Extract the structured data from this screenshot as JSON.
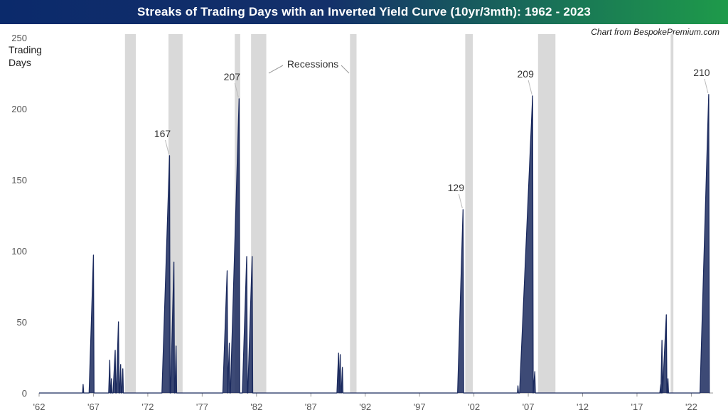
{
  "header": {
    "title": "Streaks of Trading Days with an Inverted Yield Curve (10yr/3mth): 1962 - 2023",
    "credit": "Chart from BespokePremium.com"
  },
  "colors": {
    "series": "#1b2a5e",
    "recession": "#d9d9d9",
    "axis": "#999999"
  },
  "chart_data": {
    "type": "area",
    "title": "Streaks of Trading Days with an Inverted Yield Curve (10yr/3mth): 1962 - 2023",
    "ylabel_lines": [
      "Trading",
      "Days"
    ],
    "ylim": [
      0,
      250
    ],
    "yticks": [
      0,
      50,
      100,
      150,
      200,
      250
    ],
    "xlim": [
      1962,
      2024
    ],
    "xticks": [
      {
        "year": 1962,
        "label": "'62"
      },
      {
        "year": 1967,
        "label": "'67"
      },
      {
        "year": 1972,
        "label": "'72"
      },
      {
        "year": 1977,
        "label": "'77"
      },
      {
        "year": 1982,
        "label": "'82"
      },
      {
        "year": 1987,
        "label": "'87"
      },
      {
        "year": 1992,
        "label": "'92"
      },
      {
        "year": 1997,
        "label": "'97"
      },
      {
        "year": 2002,
        "label": "'02"
      },
      {
        "year": 2007,
        "label": "'07"
      },
      {
        "year": 2012,
        "label": "'12"
      },
      {
        "year": 2017,
        "label": "'17"
      },
      {
        "year": 2022,
        "label": "'22"
      }
    ],
    "recessions_label": "Recessions",
    "recessions": [
      [
        1969.9,
        1970.9
      ],
      [
        1973.9,
        1975.2
      ],
      [
        1980.0,
        1980.5
      ],
      [
        1981.5,
        1982.9
      ],
      [
        1990.6,
        1991.2
      ],
      [
        2001.2,
        2001.9
      ],
      [
        2007.9,
        2009.5
      ],
      [
        2020.1,
        2020.35
      ]
    ],
    "streaks": [
      {
        "start": 1966.0,
        "end": 1966.05,
        "peak": 6
      },
      {
        "start": 1966.6,
        "end": 1967.0,
        "peak": 97
      },
      {
        "start": 1968.4,
        "end": 1968.5,
        "peak": 23
      },
      {
        "start": 1968.6,
        "end": 1968.65,
        "peak": 10
      },
      {
        "start": 1968.8,
        "end": 1969.0,
        "peak": 30
      },
      {
        "start": 1969.1,
        "end": 1969.3,
        "peak": 50
      },
      {
        "start": 1969.4,
        "end": 1969.5,
        "peak": 20
      },
      {
        "start": 1969.6,
        "end": 1969.7,
        "peak": 17
      },
      {
        "start": 1973.3,
        "end": 1974.0,
        "peak": 167
      },
      {
        "start": 1974.1,
        "end": 1974.4,
        "peak": 92
      },
      {
        "start": 1974.5,
        "end": 1974.6,
        "peak": 33
      },
      {
        "start": 1978.9,
        "end": 1979.3,
        "peak": 86
      },
      {
        "start": 1979.35,
        "end": 1979.5,
        "peak": 35
      },
      {
        "start": 1979.6,
        "end": 1980.4,
        "peak": 207
      },
      {
        "start": 1980.7,
        "end": 1981.1,
        "peak": 96
      },
      {
        "start": 1981.2,
        "end": 1981.6,
        "peak": 96
      },
      {
        "start": 1989.4,
        "end": 1989.55,
        "peak": 28
      },
      {
        "start": 1989.6,
        "end": 1989.7,
        "peak": 27
      },
      {
        "start": 1989.8,
        "end": 1989.9,
        "peak": 18
      },
      {
        "start": 2000.5,
        "end": 2001.0,
        "peak": 129
      },
      {
        "start": 2006.0,
        "end": 2006.05,
        "peak": 5
      },
      {
        "start": 2006.2,
        "end": 2007.4,
        "peak": 209
      },
      {
        "start": 2007.45,
        "end": 2007.6,
        "peak": 15
      },
      {
        "start": 2019.1,
        "end": 2019.2,
        "peak": 6
      },
      {
        "start": 2019.2,
        "end": 2019.3,
        "peak": 37
      },
      {
        "start": 2019.35,
        "end": 2019.7,
        "peak": 55
      },
      {
        "start": 2019.8,
        "end": 2019.85,
        "peak": 10
      },
      {
        "start": 2022.8,
        "end": 2023.6,
        "peak": 210
      }
    ],
    "peak_labels": [
      {
        "year": 1974.0,
        "value": 167,
        "text": "167"
      },
      {
        "year": 1980.4,
        "value": 207,
        "text": "207"
      },
      {
        "year": 2001.0,
        "value": 129,
        "text": "129"
      },
      {
        "year": 2007.4,
        "value": 209,
        "text": "209"
      },
      {
        "year": 2023.6,
        "value": 210,
        "text": "210"
      }
    ]
  }
}
